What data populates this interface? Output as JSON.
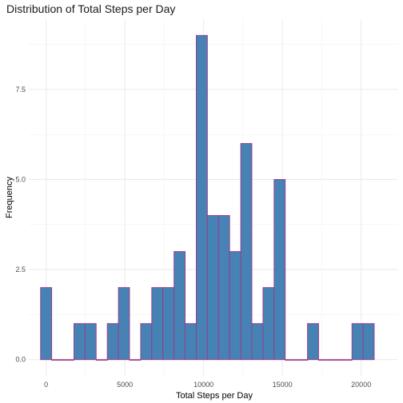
{
  "chart_data": {
    "type": "bar",
    "title": "Distribution of Total Steps per Day",
    "xlabel": "Total Steps per Day",
    "ylabel": "Frequency",
    "binwidth": 706,
    "bins": [
      {
        "center": 0,
        "count": 2
      },
      {
        "center": 706,
        "count": 0
      },
      {
        "center": 1412,
        "count": 0
      },
      {
        "center": 2118,
        "count": 1
      },
      {
        "center": 2824,
        "count": 1
      },
      {
        "center": 3530,
        "count": 0
      },
      {
        "center": 4236,
        "count": 1
      },
      {
        "center": 4942,
        "count": 2
      },
      {
        "center": 5648,
        "count": 0
      },
      {
        "center": 6354,
        "count": 1
      },
      {
        "center": 7060,
        "count": 2
      },
      {
        "center": 7766,
        "count": 2
      },
      {
        "center": 8472,
        "count": 3
      },
      {
        "center": 9178,
        "count": 1
      },
      {
        "center": 9884,
        "count": 9
      },
      {
        "center": 10590,
        "count": 4
      },
      {
        "center": 11296,
        "count": 4
      },
      {
        "center": 12002,
        "count": 3
      },
      {
        "center": 12708,
        "count": 6
      },
      {
        "center": 13414,
        "count": 1
      },
      {
        "center": 14120,
        "count": 2
      },
      {
        "center": 14826,
        "count": 5
      },
      {
        "center": 15532,
        "count": 0
      },
      {
        "center": 16238,
        "count": 0
      },
      {
        "center": 16944,
        "count": 1
      },
      {
        "center": 17650,
        "count": 0
      },
      {
        "center": 18356,
        "count": 0
      },
      {
        "center": 19062,
        "count": 0
      },
      {
        "center": 19768,
        "count": 1
      },
      {
        "center": 20474,
        "count": 1
      }
    ],
    "xlim": [
      -1100,
      22300
    ],
    "ylim": [
      -0.45,
      9.45
    ],
    "x_ticks": [
      0,
      5000,
      10000,
      15000,
      20000
    ],
    "x_tick_labels": [
      "0",
      "5000",
      "10000",
      "15000",
      "20000"
    ],
    "y_ticks": [
      0,
      2.5,
      5,
      7.5
    ],
    "y_tick_labels": [
      "0.0",
      "2.5",
      "5.0",
      "7.5"
    ],
    "grid": true,
    "bar_fill": "#4682b4",
    "bar_stroke": "#a0368a"
  }
}
